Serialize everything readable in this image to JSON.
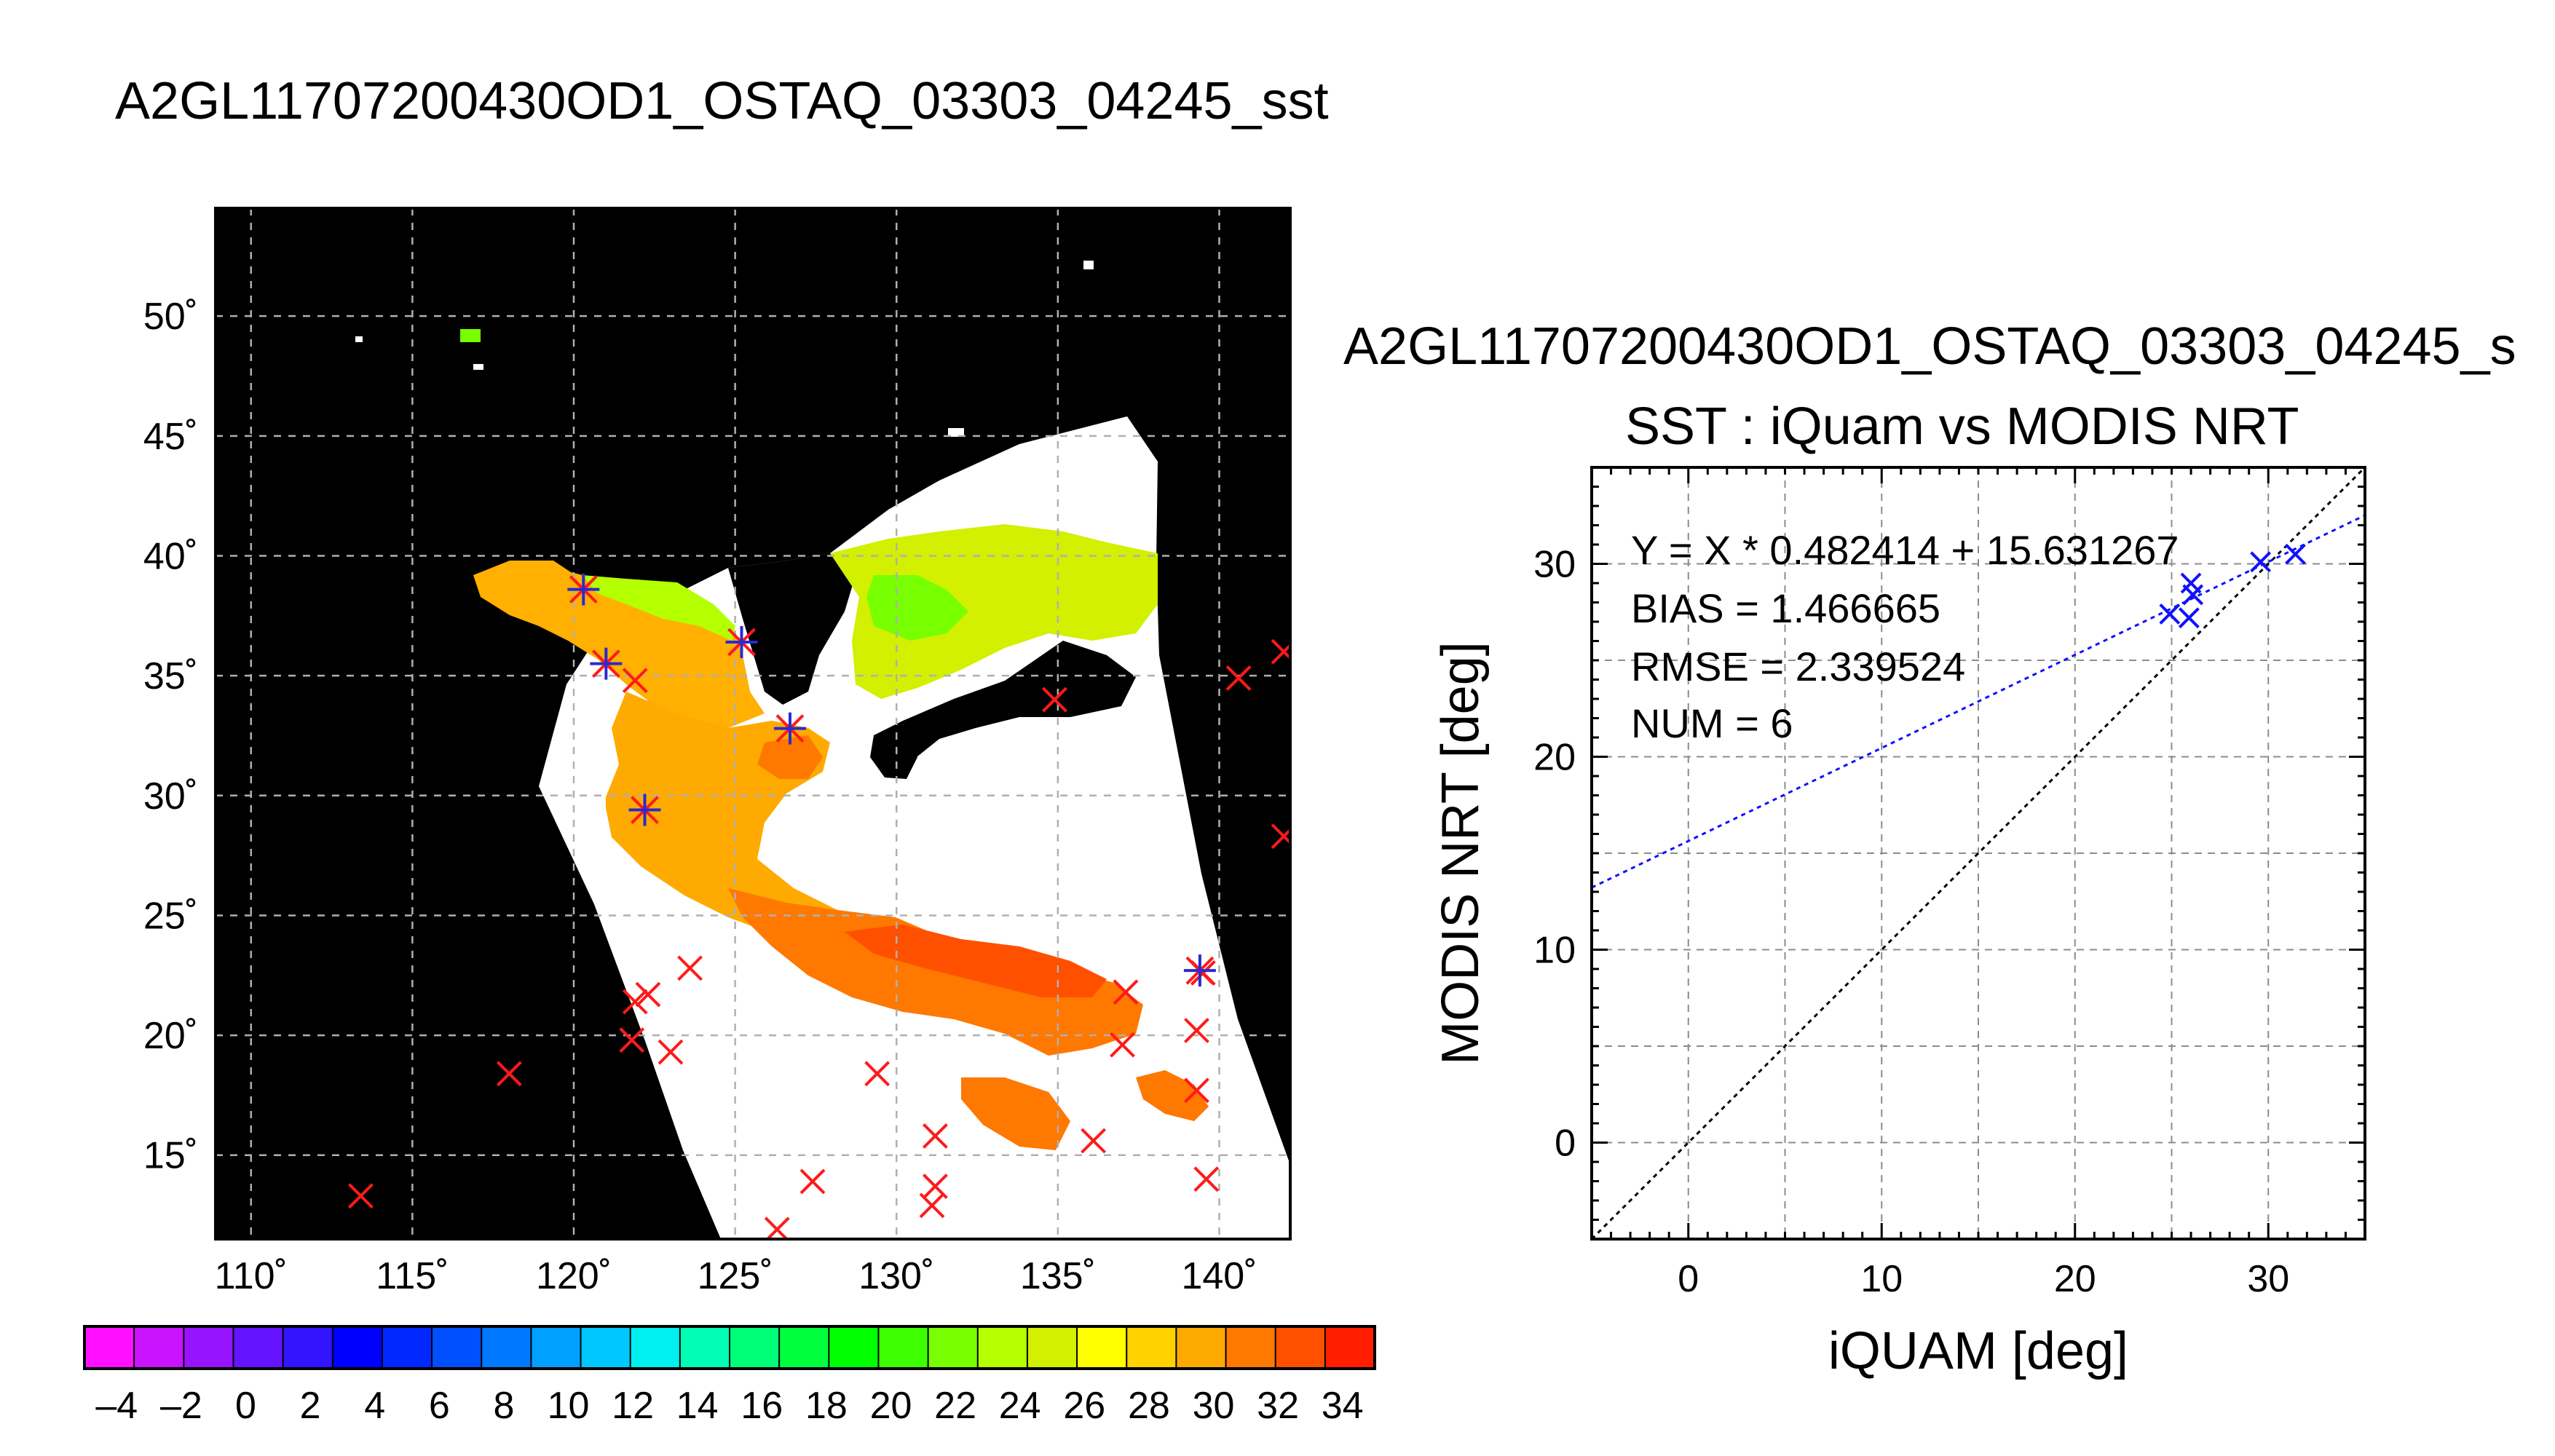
{
  "titles": {
    "map_title": "A2GL11707200430OD1_OSTAQ_03303_04245_sst",
    "scatter_header": "A2GL11707200430OD1_OSTAQ_03303_04245_s",
    "scatter_title": "SST : iQuam vs MODIS NRT"
  },
  "colors": {
    "map_background": "#000000",
    "cloud_mask": "#ffffff",
    "valid_marker": "#2a2ad0",
    "invalid_marker": "#ff1a1a",
    "fit_line": "#1010ff",
    "identity_line": "#000000"
  },
  "map": {
    "lon_ticks": [
      "110˚",
      "115˚",
      "120˚",
      "125˚",
      "130˚",
      "135˚",
      "140˚"
    ],
    "lat_ticks": [
      "50˚",
      "45˚",
      "40˚",
      "35˚",
      "30˚",
      "25˚",
      "20˚",
      "15˚"
    ],
    "grid": true,
    "matched_buoys_lonlat": [
      [
        120.3,
        38.6
      ],
      [
        121.0,
        35.5
      ],
      [
        122.2,
        29.4
      ],
      [
        125.2,
        36.4
      ],
      [
        126.7,
        32.8
      ],
      [
        139.4,
        22.7
      ]
    ],
    "unmatched_buoys_lonlat": [
      [
        113.4,
        13.3
      ],
      [
        118.0,
        18.4
      ],
      [
        121.8,
        19.8
      ],
      [
        121.9,
        21.4
      ],
      [
        122.3,
        21.7
      ],
      [
        123.0,
        19.3
      ],
      [
        123.6,
        22.8
      ],
      [
        121.9,
        34.8
      ],
      [
        126.3,
        11.9
      ],
      [
        127.4,
        13.9
      ],
      [
        129.4,
        18.4
      ],
      [
        131.2,
        13.7
      ],
      [
        131.1,
        12.9
      ],
      [
        131.2,
        15.8
      ],
      [
        134.9,
        34.0
      ],
      [
        136.1,
        15.6
      ],
      [
        137.0,
        19.6
      ],
      [
        137.1,
        21.8
      ],
      [
        139.3,
        20.2
      ],
      [
        139.3,
        17.7
      ],
      [
        139.6,
        14.0
      ],
      [
        139.5,
        22.6
      ],
      [
        140.6,
        34.9
      ],
      [
        142.0,
        36.0
      ],
      [
        142.0,
        28.3
      ]
    ]
  },
  "colorbar": {
    "min": -5,
    "max": 35,
    "labels": [
      "–4",
      "–2",
      "0",
      "2",
      "4",
      "6",
      "8",
      "10",
      "12",
      "14",
      "16",
      "18",
      "20",
      "22",
      "24",
      "26",
      "28",
      "30",
      "32",
      "34"
    ],
    "label_values": [
      -4,
      -2,
      0,
      2,
      4,
      6,
      8,
      10,
      12,
      14,
      16,
      18,
      20,
      22,
      24,
      26,
      28,
      30,
      32,
      34
    ],
    "colors": [
      "#ff10ff",
      "#c814ff",
      "#9614ff",
      "#6414ff",
      "#3214ff",
      "#0000ff",
      "#0028ff",
      "#0050ff",
      "#0078ff",
      "#00a0ff",
      "#00c8ff",
      "#00f0f0",
      "#00ffb4",
      "#00ff78",
      "#00ff3c",
      "#00ff00",
      "#3cff00",
      "#78ff00",
      "#b4ff00",
      "#d2f000",
      "#ffff00",
      "#ffd200",
      "#ffaa00",
      "#ff7800",
      "#ff5000",
      "#ff1e00"
    ]
  },
  "stats": {
    "equation": "Y = X * 0.482414 + 15.631267",
    "bias": "BIAS = 1.466665",
    "rmse": "RMSE = 2.339524",
    "num": "NUM = 6"
  },
  "chart_data": {
    "type": "scatter",
    "title": "SST : iQuam vs MODIS NRT",
    "xlabel": "iQUAM [deg]",
    "ylabel": "MODIS NRT [deg]",
    "xlim": [
      -5,
      35
    ],
    "ylim": [
      -5,
      35
    ],
    "x_ticks": [
      0,
      10,
      20,
      30
    ],
    "y_ticks": [
      0,
      10,
      20,
      30
    ],
    "grid": true,
    "series": [
      {
        "points": [
          {
            "x": 24.9,
            "y": 27.4
          },
          {
            "x": 25.9,
            "y": 27.2
          },
          {
            "x": 26.0,
            "y": 29.0
          },
          {
            "x": 26.1,
            "y": 28.4
          },
          {
            "x": 29.6,
            "y": 30.1
          },
          {
            "x": 31.4,
            "y": 30.5
          }
        ]
      }
    ],
    "fit": {
      "slope": 0.482414,
      "intercept": 15.631267
    },
    "identity_line": true
  }
}
